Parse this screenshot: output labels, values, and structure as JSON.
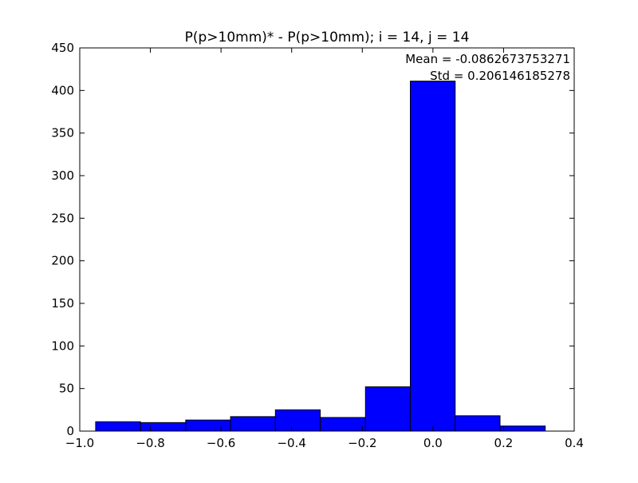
{
  "chart_data": {
    "type": "bar",
    "title": "P(p>10mm)* - P(p>10mm); i = 14, j = 14",
    "xlabel": "",
    "ylabel": "",
    "xlim": [
      -1.0,
      0.4
    ],
    "ylim": [
      0,
      450
    ],
    "grid": false,
    "bar_color": "#0000ff",
    "edge_color": "#000000",
    "bins": [
      {
        "x0": -0.955,
        "x1": -0.828,
        "value": 11
      },
      {
        "x0": -0.828,
        "x1": -0.7,
        "value": 10
      },
      {
        "x0": -0.7,
        "x1": -0.573,
        "value": 13
      },
      {
        "x0": -0.573,
        "x1": -0.446,
        "value": 17
      },
      {
        "x0": -0.446,
        "x1": -0.319,
        "value": 25
      },
      {
        "x0": -0.319,
        "x1": -0.191,
        "value": 16
      },
      {
        "x0": -0.191,
        "x1": -0.064,
        "value": 52
      },
      {
        "x0": -0.064,
        "x1": 0.063,
        "value": 411
      },
      {
        "x0": 0.063,
        "x1": 0.19,
        "value": 18
      },
      {
        "x0": 0.19,
        "x1": 0.318,
        "value": 6
      }
    ],
    "xticks": [
      {
        "value": -1.0,
        "label": "−1.0"
      },
      {
        "value": -0.8,
        "label": "−0.8"
      },
      {
        "value": -0.6,
        "label": "−0.6"
      },
      {
        "value": -0.4,
        "label": "−0.4"
      },
      {
        "value": -0.2,
        "label": "−0.2"
      },
      {
        "value": 0.0,
        "label": "0.0"
      },
      {
        "value": 0.2,
        "label": "0.2"
      },
      {
        "value": 0.4,
        "label": "0.4"
      }
    ],
    "yticks": [
      {
        "value": 0,
        "label": "0"
      },
      {
        "value": 50,
        "label": "50"
      },
      {
        "value": 100,
        "label": "100"
      },
      {
        "value": 150,
        "label": "150"
      },
      {
        "value": 200,
        "label": "200"
      },
      {
        "value": 250,
        "label": "250"
      },
      {
        "value": 300,
        "label": "300"
      },
      {
        "value": 350,
        "label": "350"
      },
      {
        "value": 400,
        "label": "400"
      },
      {
        "value": 450,
        "label": "450"
      }
    ],
    "annotations": [
      "Mean = -0.0862673753271",
      "Std = 0.206146185278"
    ]
  }
}
